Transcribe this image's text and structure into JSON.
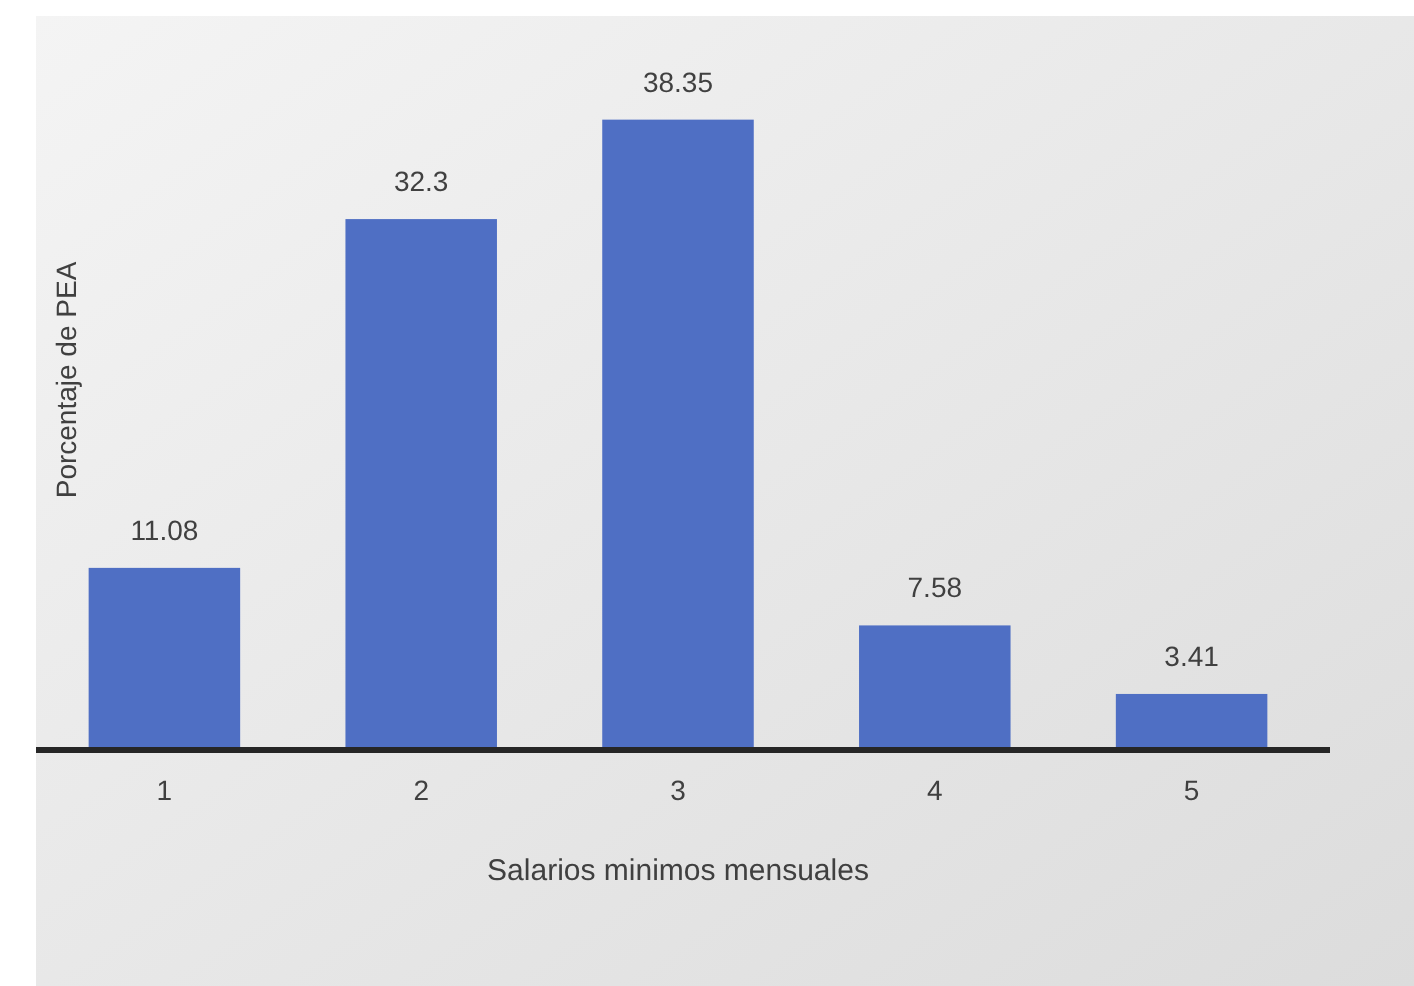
{
  "chart_data": {
    "type": "bar",
    "xlabel": "Salarios minimos mensuales",
    "ylabel": "Porcentaje de PEA",
    "categories": [
      "1",
      "2",
      "3",
      "4",
      "5"
    ],
    "values": [
      11.08,
      32.3,
      38.35,
      7.58,
      3.41
    ],
    "color": "#4f6fc4",
    "data_labels": true
  }
}
